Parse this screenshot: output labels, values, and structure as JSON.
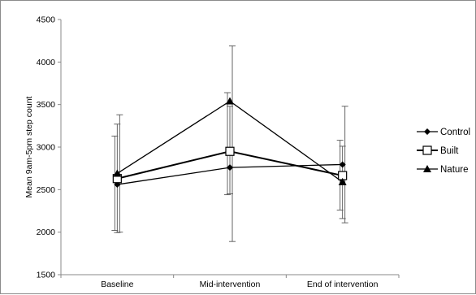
{
  "chart_data": {
    "type": "line",
    "ylabel": "Mean 9am-5pm step count",
    "xlabel": "",
    "ylim": [
      1500,
      4500
    ],
    "yticks": [
      1500,
      2000,
      2500,
      3000,
      3500,
      4000,
      4500
    ],
    "categories": [
      "Baseline",
      "Mid-intervention",
      "End of intervention"
    ],
    "grid": false,
    "legend_position": "right",
    "series": [
      {
        "name": "Control",
        "marker": "diamond-filled",
        "values": [
          2560,
          2760,
          2795
        ],
        "error_low": [
          2020,
          2440,
          2260
        ],
        "error_high": [
          3130,
          3640,
          3080
        ],
        "color": "#000000",
        "line_width": 1.3
      },
      {
        "name": "Built",
        "marker": "square-open",
        "values": [
          2630,
          2950,
          2665
        ],
        "error_low": [
          1995,
          2450,
          2160
        ],
        "error_high": [
          3270,
          3480,
          3010
        ],
        "color": "#000000",
        "line_width": 2
      },
      {
        "name": "Nature",
        "marker": "triangle-filled",
        "values": [
          2690,
          3540,
          2590
        ],
        "error_low": [
          2000,
          1890,
          2110
        ],
        "error_high": [
          3380,
          4190,
          3480
        ],
        "color": "#000000",
        "line_width": 1.3
      }
    ]
  }
}
